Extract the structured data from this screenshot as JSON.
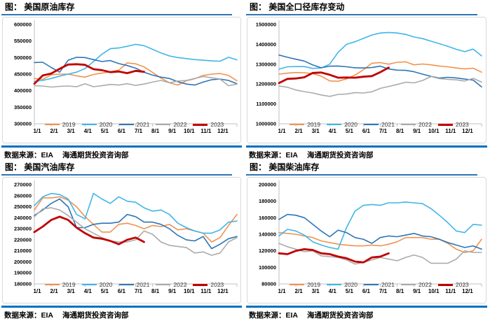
{
  "colors": {
    "title_underline": "#2E75B6",
    "separator_bar": "#0070C0",
    "axis_line": "#BFBFBF",
    "legend_text": "#404040",
    "s2019": "#F09350",
    "s2020": "#3FB6E8",
    "s2021": "#2E75B6",
    "s2022": "#ABABAB",
    "s2023": "#C00000"
  },
  "panels": [
    {
      "title": "图： 美国原油库存",
      "source_prefix": "数据来源：EIA",
      "source_org": "海通期货投资咨询部"
    },
    {
      "title": "图： 美国全口径库存变动",
      "source_prefix": "数据来源：EIA",
      "source_org": "海通期货投资咨询部"
    },
    {
      "title": "图： 美国汽油库存",
      "source_prefix": "数据来源：EIA",
      "source_org": "海通期货投资咨询部"
    },
    {
      "title": "图： 美国柴油库存",
      "source_prefix": "数据来源：EIA",
      "source_org": "海通期货投资咨询部"
    }
  ],
  "chart_data": [
    {
      "type": "line",
      "title": "图： 美国原油库存",
      "x": [
        "1/1",
        "1/15",
        "2/1",
        "2/15",
        "3/1",
        "3/15",
        "4/1",
        "4/15",
        "5/1",
        "5/15",
        "6/1",
        "6/15",
        "7/1",
        "7/15",
        "8/1",
        "8/15",
        "9/1",
        "9/15",
        "10/1",
        "10/15",
        "11/1",
        "11/15",
        "12/1",
        "12/15",
        "12/31"
      ],
      "x_tick_labels": [
        "1/1",
        "2/1",
        "3/1",
        "4/1",
        "5/1",
        "6/1",
        "7/1",
        "8/1",
        "9/1",
        "10/1",
        "11/1",
        "12/1"
      ],
      "ylim": [
        300000,
        600000
      ],
      "y_ticks": [
        600000,
        550000,
        500000,
        450000,
        400000,
        350000,
        300000
      ],
      "grid": false,
      "legend_position": "bottom-inside",
      "series": [
        {
          "name": "2019",
          "color": "#F09350",
          "width": 1.6,
          "values": [
            437000,
            434000,
            448000,
            450000,
            450000,
            445000,
            441000,
            449000,
            453000,
            457000,
            462000,
            484000,
            481000,
            472000,
            455000,
            438000,
            424000,
            417000,
            430000,
            436000,
            446000,
            450000,
            452000,
            446000,
            430000
          ]
        },
        {
          "name": "2020",
          "color": "#3FB6E8",
          "width": 1.6,
          "values": [
            428000,
            431000,
            437000,
            444000,
            450000,
            456000,
            467000,
            488000,
            510000,
            527000,
            529000,
            534000,
            540000,
            536000,
            525000,
            514000,
            505000,
            500000,
            497000,
            494000,
            492000,
            490000,
            489000,
            501000,
            493000
          ]
        },
        {
          "name": "2021",
          "color": "#2E75B6",
          "width": 1.6,
          "values": [
            485000,
            486000,
            470000,
            456000,
            492000,
            501000,
            500000,
            494000,
            488000,
            491000,
            482000,
            476000,
            468000,
            456000,
            447000,
            441000,
            437000,
            427000,
            420000,
            417000,
            426000,
            433000,
            435000,
            431000,
            421000
          ]
        },
        {
          "name": "2022",
          "color": "#ABABAB",
          "width": 1.6,
          "values": [
            415000,
            414000,
            411000,
            413000,
            414000,
            412000,
            421000,
            412000,
            415000,
            419000,
            417000,
            421000,
            416000,
            420000,
            426000,
            431000,
            424000,
            429000,
            431000,
            437000,
            443000,
            439000,
            435000,
            415000,
            420000
          ]
        },
        {
          "name": "2023",
          "color": "#C00000",
          "width": 2.8,
          "values": [
            421000,
            446000,
            452000,
            466000,
            479000,
            480000,
            478000,
            465000,
            462000,
            456000,
            458000,
            453000,
            460000,
            457000
          ]
        }
      ]
    },
    {
      "type": "line",
      "title": "图： 美国全口径库存变动",
      "x": [
        "1/1",
        "1/15",
        "2/1",
        "2/15",
        "3/1",
        "3/15",
        "4/1",
        "4/15",
        "5/1",
        "5/15",
        "6/1",
        "6/15",
        "7/1",
        "7/15",
        "8/1",
        "8/15",
        "9/1",
        "9/15",
        "10/1",
        "10/15",
        "11/1",
        "11/15",
        "12/1",
        "12/15",
        "12/31"
      ],
      "x_tick_labels": [
        "1/1",
        "2/1",
        "3/1",
        "4/1",
        "5/1",
        "6/1",
        "7/1",
        "8/1",
        "9/1",
        "10/1",
        "11/1",
        "12/1"
      ],
      "ylim": [
        1000000,
        1500000
      ],
      "y_ticks": [
        1500000,
        1400000,
        1300000,
        1200000,
        1100000,
        1000000
      ],
      "grid": false,
      "legend_position": "bottom-inside",
      "series": [
        {
          "name": "2019",
          "color": "#F09350",
          "width": 1.6,
          "values": [
            1250000,
            1255000,
            1258000,
            1257000,
            1252000,
            1240000,
            1216000,
            1214000,
            1226000,
            1245000,
            1272000,
            1305000,
            1308000,
            1300000,
            1310000,
            1312000,
            1297000,
            1301000,
            1297000,
            1291000,
            1287000,
            1281000,
            1276000,
            1280000,
            1260000
          ]
        },
        {
          "name": "2020",
          "color": "#3FB6E8",
          "width": 1.6,
          "values": [
            1275000,
            1287000,
            1288000,
            1288000,
            1279000,
            1281000,
            1300000,
            1360000,
            1400000,
            1413000,
            1430000,
            1447000,
            1457000,
            1460000,
            1457000,
            1450000,
            1437000,
            1429000,
            1416000,
            1403000,
            1390000,
            1375000,
            1363000,
            1376000,
            1342000
          ]
        },
        {
          "name": "2021",
          "color": "#2E75B6",
          "width": 1.6,
          "values": [
            1346000,
            1335000,
            1325000,
            1316000,
            1296000,
            1282000,
            1290000,
            1291000,
            1287000,
            1282000,
            1281000,
            1283000,
            1290000,
            1276000,
            1270000,
            1269000,
            1262000,
            1250000,
            1239000,
            1230000,
            1234000,
            1231000,
            1225000,
            1220000,
            1186000
          ]
        },
        {
          "name": "2022",
          "color": "#ABABAB",
          "width": 1.6,
          "values": [
            1190000,
            1184000,
            1170000,
            1162000,
            1155000,
            1145000,
            1138000,
            1148000,
            1150000,
            1157000,
            1155000,
            1161000,
            1178000,
            1188000,
            1198000,
            1209000,
            1206000,
            1218000,
            1238000,
            1227000,
            1224000,
            1221000,
            1215000,
            1229000,
            1210000
          ]
        },
        {
          "name": "2023",
          "color": "#C00000",
          "width": 2.8,
          "values": [
            1205000,
            1226000,
            1228000,
            1234000,
            1256000,
            1258000,
            1247000,
            1232000,
            1233000,
            1232000,
            1237000,
            1240000,
            1260000,
            1283000
          ]
        }
      ]
    },
    {
      "type": "line",
      "title": "图： 美国汽油库存",
      "x": [
        "1/1",
        "1/15",
        "2/1",
        "2/15",
        "3/1",
        "3/15",
        "4/1",
        "4/15",
        "5/1",
        "5/15",
        "6/1",
        "6/15",
        "7/1",
        "7/15",
        "8/1",
        "8/15",
        "9/1",
        "9/15",
        "10/1",
        "10/15",
        "11/1",
        "11/15",
        "12/1",
        "12/15",
        "12/31"
      ],
      "x_tick_labels": [
        "1/1",
        "2/1",
        "3/1",
        "4/1",
        "5/1",
        "6/1",
        "7/1",
        "8/1",
        "9/1",
        "10/1",
        "11/1",
        "12/1"
      ],
      "ylim": [
        180000,
        270000
      ],
      "y_ticks": [
        270000,
        260000,
        250000,
        240000,
        230000,
        220000,
        210000,
        200000,
        190000,
        180000
      ],
      "grid": false,
      "legend_position": "bottom-inside",
      "series": [
        {
          "name": "2019",
          "color": "#F09350",
          "width": 1.6,
          "values": [
            247000,
            258000,
            258000,
            259000,
            256000,
            250000,
            241000,
            234000,
            227000,
            227000,
            234000,
            235000,
            233000,
            230000,
            233000,
            232000,
            234000,
            229000,
            230000,
            228000,
            226000,
            218000,
            222000,
            233000,
            243000
          ]
        },
        {
          "name": "2020",
          "color": "#3FB6E8",
          "width": 1.6,
          "values": [
            251000,
            259000,
            262000,
            261000,
            257000,
            243000,
            239000,
            262000,
            257000,
            253000,
            259000,
            255000,
            254000,
            249000,
            246000,
            247000,
            243000,
            235000,
            231000,
            228000,
            226000,
            226000,
            229000,
            236000,
            237000
          ]
        },
        {
          "name": "2021",
          "color": "#2E75B6",
          "width": 1.6,
          "values": [
            242000,
            247000,
            253000,
            257000,
            250000,
            231000,
            231000,
            234000,
            235000,
            235000,
            236000,
            243000,
            241000,
            236000,
            236000,
            234000,
            230000,
            224000,
            220000,
            219000,
            223000,
            212000,
            216000,
            221000,
            223000
          ]
        },
        {
          "name": "2022",
          "color": "#ABABAB",
          "width": 1.6,
          "values": [
            241000,
            248000,
            249000,
            247000,
            242000,
            236000,
            230000,
            226000,
            222000,
            219000,
            218000,
            218000,
            220000,
            228000,
            225000,
            218000,
            215000,
            214000,
            213000,
            208000,
            209000,
            206000,
            208000,
            218000,
            222000
          ]
        },
        {
          "name": "2023",
          "color": "#C00000",
          "width": 2.8,
          "values": [
            227000,
            232000,
            238000,
            241000,
            238000,
            231000,
            226000,
            222000,
            221000,
            219000,
            216000,
            220000,
            222000,
            218000
          ]
        }
      ]
    },
    {
      "type": "line",
      "title": "图： 美国柴油库存",
      "x": [
        "1/1",
        "1/15",
        "2/1",
        "2/15",
        "3/1",
        "3/15",
        "4/1",
        "4/15",
        "5/1",
        "5/15",
        "6/1",
        "6/15",
        "7/1",
        "7/15",
        "8/1",
        "8/15",
        "9/1",
        "9/15",
        "10/1",
        "10/15",
        "11/1",
        "11/15",
        "12/1",
        "12/15",
        "12/31"
      ],
      "x_tick_labels": [
        "1/1",
        "2/1",
        "3/1",
        "4/1",
        "5/1",
        "6/1",
        "7/1",
        "8/1",
        "9/1",
        "10/1",
        "11/1",
        "12/1"
      ],
      "ylim": [
        80000,
        200000
      ],
      "y_ticks": [
        200000,
        180000,
        160000,
        140000,
        120000,
        100000,
        80000
      ],
      "grid": false,
      "legend_position": "bottom-inside",
      "series": [
        {
          "name": "2019",
          "color": "#F09350",
          "width": 1.6,
          "values": [
            142000,
            141000,
            140000,
            138000,
            136000,
            132000,
            130000,
            128000,
            127000,
            126000,
            126000,
            127000,
            126000,
            128000,
            131000,
            136000,
            136000,
            136000,
            134000,
            134000,
            129000,
            122000,
            118000,
            120000,
            134000
          ]
        },
        {
          "name": "2020",
          "color": "#3FB6E8",
          "width": 1.6,
          "values": [
            138000,
            146000,
            144000,
            139000,
            131000,
            127000,
            124000,
            122000,
            148000,
            168000,
            175000,
            176000,
            175000,
            178000,
            178000,
            179000,
            178000,
            177000,
            171000,
            163000,
            154000,
            144000,
            142000,
            152000,
            151000
          ]
        },
        {
          "name": "2021",
          "color": "#2E75B6",
          "width": 1.6,
          "values": [
            158000,
            164000,
            163000,
            160000,
            152000,
            144000,
            137000,
            145000,
            142000,
            136000,
            134000,
            129000,
            136000,
            138000,
            137000,
            139000,
            141000,
            138000,
            137000,
            134000,
            130000,
            127000,
            124000,
            126000,
            122000
          ]
        },
        {
          "name": "2022",
          "color": "#ABABAB",
          "width": 1.6,
          "values": [
            129000,
            125000,
            122000,
            119000,
            120000,
            114000,
            113000,
            112000,
            109000,
            104000,
            106000,
            109000,
            112000,
            110000,
            108000,
            112000,
            115000,
            112000,
            105000,
            105000,
            105000,
            110000,
            120000,
            118000,
            118000
          ]
        },
        {
          "name": "2023",
          "color": "#C00000",
          "width": 2.8,
          "values": [
            117000,
            116000,
            120000,
            122000,
            121000,
            117000,
            116000,
            113000,
            111000,
            107000,
            106000,
            112000,
            113000,
            117000
          ]
        }
      ]
    }
  ]
}
